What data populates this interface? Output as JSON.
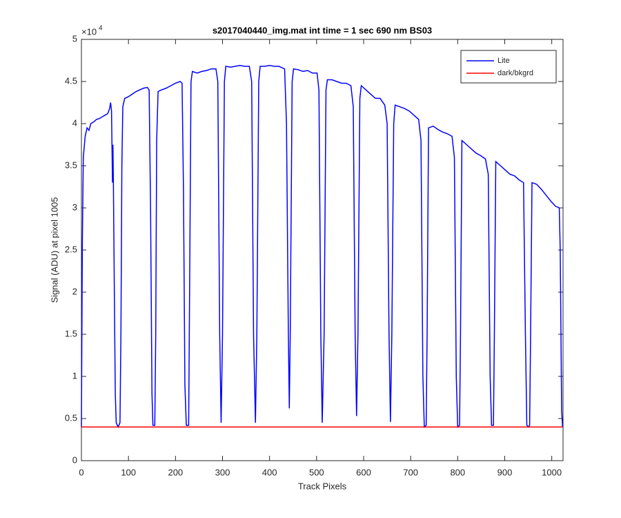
{
  "chart_data": {
    "type": "line",
    "title": "s2017040440_img.mat int time = 1 sec  690 nm BS03",
    "x_label": "Track Pixels",
    "y_label": "Signal (ADU) at pixel 1005",
    "y_multiplier": "×10",
    "y_multiplier_exponent": "4",
    "xlim": [
      0,
      1024
    ],
    "ylim": [
      0,
      5
    ],
    "xticks": [
      0,
      100,
      200,
      300,
      400,
      500,
      600,
      700,
      800,
      900,
      1000
    ],
    "yticks": [
      0,
      0.5,
      1,
      1.5,
      2,
      2.5,
      3,
      3.5,
      4,
      4.5,
      5
    ],
    "grid": false,
    "legend_position": "upper right",
    "series": [
      {
        "name": "Lite",
        "color": "#0000ff",
        "x": [
          0,
          2,
          4,
          8,
          12,
          16,
          20,
          26,
          32,
          38,
          44,
          50,
          56,
          60,
          62,
          64,
          66,
          67,
          68,
          70,
          72,
          74,
          78,
          82,
          84,
          86,
          88,
          92,
          100,
          108,
          116,
          124,
          132,
          140,
          144,
          147,
          150,
          152,
          156,
          158,
          160,
          163,
          170,
          180,
          190,
          200,
          210,
          214,
          217,
          220,
          223,
          228,
          230,
          233,
          236,
          246,
          256,
          266,
          276,
          286,
          290,
          294,
          297,
          300,
          304,
          307,
          317,
          327,
          337,
          347,
          357,
          362,
          366,
          370,
          373,
          377,
          380,
          390,
          400,
          410,
          420,
          432,
          436,
          440,
          442,
          444,
          448,
          451,
          461,
          471,
          481,
          491,
          501,
          505,
          509,
          512,
          516,
          520,
          523,
          533,
          543,
          553,
          563,
          573,
          578,
          582,
          585,
          588,
          592,
          595,
          605,
          615,
          625,
          635,
          645,
          650,
          654,
          657,
          660,
          664,
          667,
          677,
          687,
          697,
          707,
          717,
          722,
          726,
          729,
          733,
          735,
          738,
          748,
          758,
          768,
          778,
          788,
          793,
          797,
          800,
          804,
          806,
          809,
          819,
          829,
          839,
          849,
          859,
          865,
          869,
          872,
          876,
          878,
          881,
          891,
          901,
          911,
          921,
          931,
          940,
          944,
          947,
          951,
          953,
          955,
          958,
          968,
          978,
          988,
          998,
          1008,
          1016,
          1018,
          1021,
          1023
        ],
        "values": [
          0.4,
          2.6,
          3.6,
          3.85,
          3.95,
          3.92,
          4.0,
          4.02,
          4.05,
          4.06,
          4.08,
          4.1,
          4.12,
          4.18,
          4.25,
          4.15,
          3.3,
          3.75,
          3.3,
          2.0,
          0.8,
          0.45,
          0.4,
          0.45,
          1.5,
          3.5,
          4.2,
          4.3,
          4.32,
          4.35,
          4.38,
          4.4,
          4.42,
          4.43,
          4.4,
          3.0,
          0.8,
          0.42,
          0.42,
          1.5,
          3.8,
          4.38,
          4.4,
          4.42,
          4.45,
          4.48,
          4.5,
          4.48,
          3.2,
          0.9,
          0.42,
          0.42,
          2.0,
          4.5,
          4.62,
          4.6,
          4.62,
          4.63,
          4.65,
          4.65,
          4.5,
          1.5,
          0.45,
          1.5,
          4.5,
          4.68,
          4.67,
          4.68,
          4.69,
          4.68,
          4.68,
          4.5,
          1.5,
          0.45,
          1.5,
          4.5,
          4.68,
          4.68,
          4.69,
          4.68,
          4.68,
          4.65,
          4.0,
          1.5,
          0.62,
          1.5,
          4.5,
          4.65,
          4.64,
          4.62,
          4.63,
          4.6,
          4.6,
          4.4,
          1.5,
          0.45,
          1.5,
          4.4,
          4.52,
          4.52,
          4.5,
          4.48,
          4.48,
          4.45,
          4.2,
          1.5,
          0.53,
          1.5,
          4.3,
          4.45,
          4.4,
          4.35,
          4.3,
          4.3,
          4.22,
          4.0,
          1.5,
          0.46,
          1.5,
          4.0,
          4.22,
          4.2,
          4.18,
          4.15,
          4.1,
          4.05,
          3.8,
          1.0,
          0.4,
          0.42,
          1.5,
          3.95,
          3.97,
          3.93,
          3.9,
          3.88,
          3.85,
          3.6,
          1.0,
          0.4,
          0.42,
          1.5,
          3.8,
          3.75,
          3.7,
          3.65,
          3.62,
          3.58,
          3.4,
          1.0,
          0.42,
          0.42,
          1.5,
          3.55,
          3.5,
          3.45,
          3.4,
          3.38,
          3.33,
          3.3,
          1.5,
          0.42,
          0.4,
          0.42,
          1.5,
          3.3,
          3.28,
          3.22,
          3.15,
          3.08,
          3.02,
          3.0,
          2.5,
          0.6,
          0.4
        ]
      },
      {
        "name": "dark/bkgrd",
        "color": "#ff0000",
        "x": [
          0,
          1023
        ],
        "values": [
          0.4,
          0.4
        ]
      }
    ]
  }
}
